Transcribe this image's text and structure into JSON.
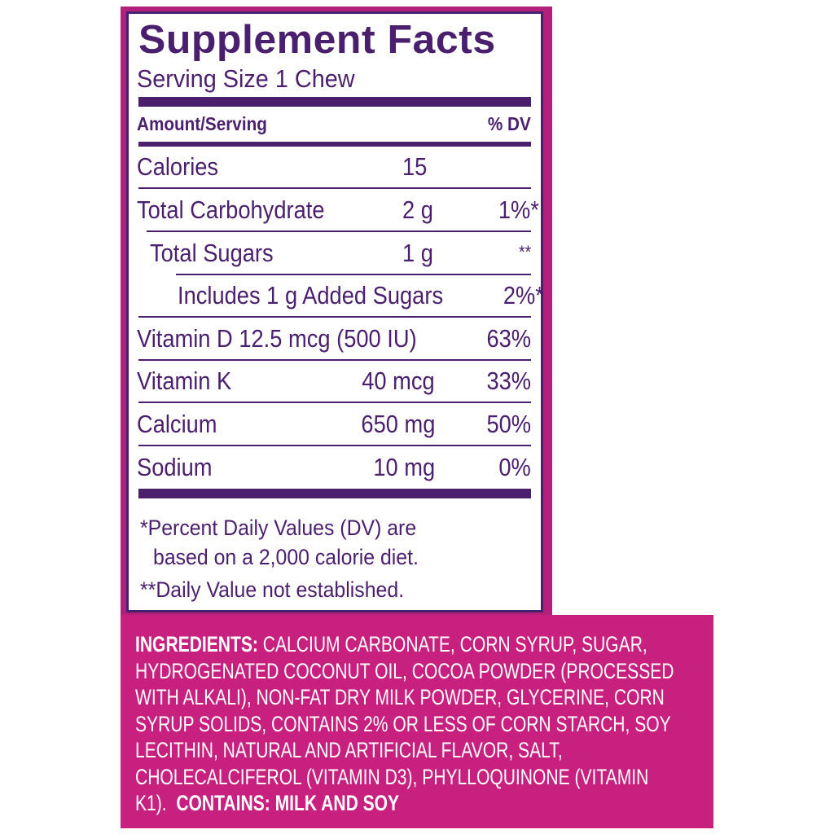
{
  "panel": {
    "title": "Supplement Facts",
    "serving_size": "Serving Size 1 Chew",
    "header_amount": "Amount/Serving",
    "header_dv": "% DV",
    "rows": [
      {
        "name": "Calories",
        "amount": "15",
        "dv": ""
      },
      {
        "name": "Total Carbohydrate",
        "amount": "2 g",
        "dv": "1%*"
      },
      {
        "name": "Total Sugars",
        "amount": "1 g",
        "dv": "**"
      },
      {
        "name": "Includes 1 g Added Sugars",
        "amount": "",
        "dv": "2%*"
      },
      {
        "name": "Vitamin D 12.5 mcg (500 IU)",
        "amount": "",
        "dv": "63%"
      },
      {
        "name": "Vitamin K",
        "amount": "40 mcg",
        "dv": "33%"
      },
      {
        "name": "Calcium",
        "amount": "650 mg",
        "dv": "50%"
      },
      {
        "name": "Sodium",
        "amount": "10 mg",
        "dv": "0%"
      }
    ],
    "footnote_1a": "*Percent Daily Values (DV) are",
    "footnote_1b": "based on a 2,000 calorie diet.",
    "footnote_2": "**Daily Value not established."
  },
  "ingredients": {
    "label": "INGREDIENTS:",
    "lines": [
      " CALCIUM CARBONATE, CORN SYRUP, SUGAR,",
      "HYDROGENATED COCONUT OIL, COCOA POWDER (PROCESSED",
      "WITH ALKALI), NON-FAT DRY MILK POWDER, GLYCERINE, CORN",
      "SYRUP SOLIDS, CONTAINS 2% OR LESS OF CORN STARCH, SOY",
      "LECITHIN, NATURAL AND ARTIFICIAL FLAVOR, SALT,",
      "CHOLECALCIFEROL (VITAMIN D3), PHYLLOQUINONE (VITAMIN",
      "K1).  "
    ],
    "contains": "CONTAINS: MILK AND SOY"
  },
  "colors": {
    "text": "#4a1f6e",
    "magenta": "#c8207e"
  }
}
